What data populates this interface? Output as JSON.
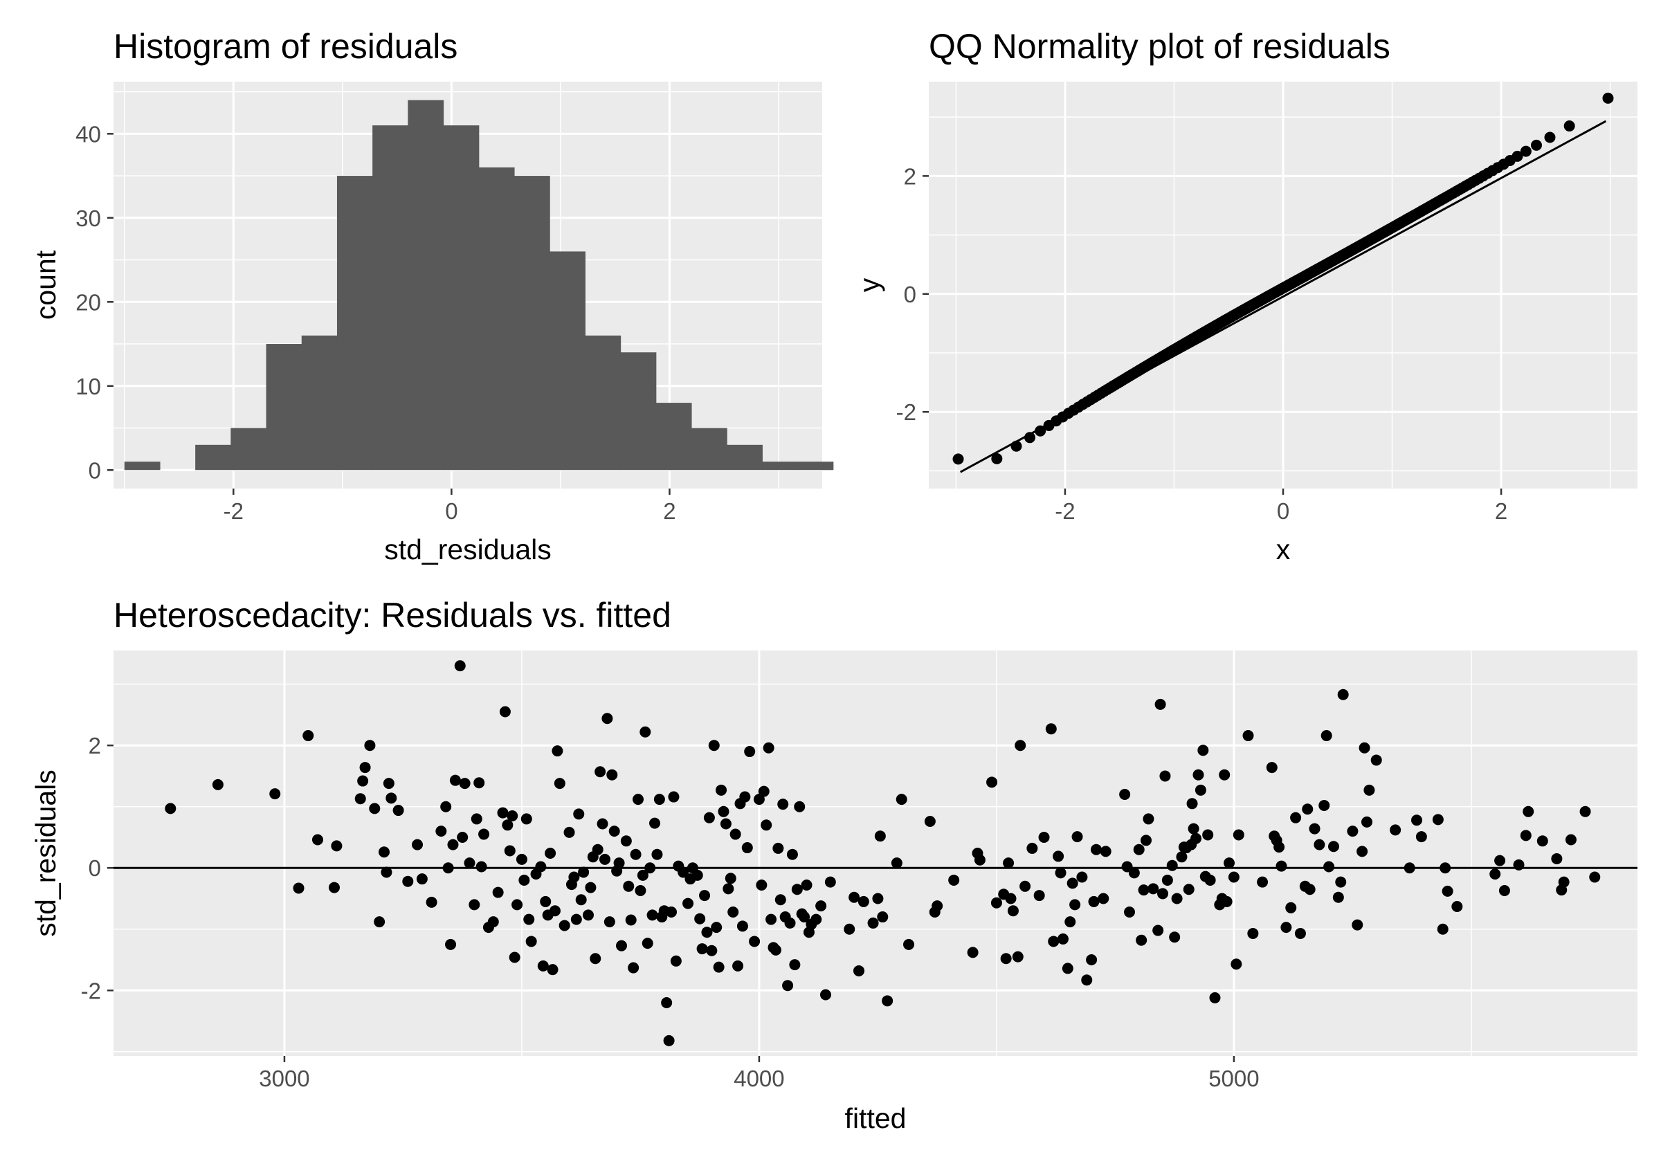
{
  "chart_data": [
    {
      "type": "bar",
      "title": "Histogram of residuals",
      "xlabel": "std_residuals",
      "ylabel": "count",
      "xlim": [
        -3.1,
        3.4
      ],
      "ylim": [
        -2.2,
        46.2
      ],
      "x_ticks": [
        -2,
        0,
        2
      ],
      "y_ticks": [
        0,
        10,
        20,
        30,
        40
      ],
      "bin_width": 0.325,
      "bin_start": -3.0,
      "counts": [
        1,
        0,
        3,
        5,
        15,
        16,
        35,
        41,
        44,
        41,
        36,
        35,
        26,
        16,
        14,
        8,
        5,
        3,
        1,
        1
      ],
      "grid": true,
      "bar_color": "#595959"
    },
    {
      "type": "scatter",
      "title": "QQ Normality plot of residuals",
      "xlabel": "x",
      "ylabel": "y",
      "xlim": [
        -3.25,
        3.25
      ],
      "ylim": [
        -3.3,
        3.6
      ],
      "x_ticks": [
        -2,
        0,
        2
      ],
      "y_ticks": [
        -2,
        0,
        2
      ],
      "reference_line": {
        "x": [
          -2.96,
          2.96
        ],
        "y": [
          -3.02,
          2.93
        ]
      },
      "sample_size": 347,
      "grid": true,
      "point_color": "#000000"
    },
    {
      "type": "scatter",
      "title": "Heteroscedacity: Residuals vs. fitted",
      "xlabel": "fitted",
      "ylabel": "std_residuals",
      "xlim": [
        2640,
        5850
      ],
      "ylim": [
        -3.07,
        3.55
      ],
      "x_ticks": [
        3000,
        4000,
        5000
      ],
      "y_ticks": [
        -2,
        0,
        2
      ],
      "hline": 0,
      "grid": true,
      "point_color": "#000000",
      "points": [
        [
          2760,
          0.97
        ],
        [
          2860,
          1.36
        ],
        [
          2980,
          1.21
        ],
        [
          3030,
          -0.33
        ],
        [
          3050,
          2.16
        ],
        [
          3070,
          0.46
        ],
        [
          3110,
          0.36
        ],
        [
          3105,
          -0.32
        ],
        [
          3160,
          1.13
        ],
        [
          3165,
          1.42
        ],
        [
          3170,
          1.64
        ],
        [
          3180,
          2.0
        ],
        [
          3190,
          0.97
        ],
        [
          3200,
          -0.88
        ],
        [
          3210,
          0.26
        ],
        [
          3215,
          -0.07
        ],
        [
          3220,
          1.38
        ],
        [
          3225,
          1.14
        ],
        [
          3240,
          0.94
        ],
        [
          3260,
          -0.22
        ],
        [
          3280,
          0.38
        ],
        [
          3290,
          -0.18
        ],
        [
          3310,
          -0.56
        ],
        [
          3330,
          0.6
        ],
        [
          3340,
          1.0
        ],
        [
          3345,
          0.0
        ],
        [
          3350,
          -1.25
        ],
        [
          3355,
          0.38
        ],
        [
          3360,
          1.43
        ],
        [
          3370,
          3.3
        ],
        [
          3375,
          0.5
        ],
        [
          3380,
          1.38
        ],
        [
          3390,
          0.08
        ],
        [
          3400,
          -0.6
        ],
        [
          3405,
          0.8
        ],
        [
          3410,
          1.39
        ],
        [
          3415,
          0.02
        ],
        [
          3420,
          0.55
        ],
        [
          3430,
          -0.97
        ],
        [
          3440,
          -0.88
        ],
        [
          3450,
          -0.4
        ],
        [
          3460,
          0.9
        ],
        [
          3465,
          2.55
        ],
        [
          3470,
          0.7
        ],
        [
          3475,
          0.28
        ],
        [
          3480,
          0.85
        ],
        [
          3485,
          -1.46
        ],
        [
          3490,
          -0.6
        ],
        [
          3500,
          0.14
        ],
        [
          3505,
          -0.2
        ],
        [
          3510,
          0.8
        ],
        [
          3515,
          -0.84
        ],
        [
          3520,
          -1.2
        ],
        [
          3530,
          -0.1
        ],
        [
          3540,
          0.02
        ],
        [
          3545,
          -1.6
        ],
        [
          3550,
          -0.55
        ],
        [
          3555,
          -0.77
        ],
        [
          3560,
          0.24
        ],
        [
          3565,
          -1.66
        ],
        [
          3570,
          -0.7
        ],
        [
          3575,
          1.91
        ],
        [
          3580,
          1.38
        ],
        [
          3590,
          -0.94
        ],
        [
          3600,
          0.58
        ],
        [
          3605,
          -0.27
        ],
        [
          3610,
          -0.15
        ],
        [
          3615,
          -0.84
        ],
        [
          3620,
          0.88
        ],
        [
          3625,
          -0.52
        ],
        [
          3630,
          -0.07
        ],
        [
          3640,
          -0.77
        ],
        [
          3645,
          -0.32
        ],
        [
          3650,
          0.18
        ],
        [
          3655,
          -1.48
        ],
        [
          3660,
          0.3
        ],
        [
          3665,
          1.57
        ],
        [
          3670,
          0.72
        ],
        [
          3675,
          0.14
        ],
        [
          3680,
          2.44
        ],
        [
          3685,
          -0.88
        ],
        [
          3690,
          1.52
        ],
        [
          3695,
          0.6
        ],
        [
          3700,
          -0.05
        ],
        [
          3705,
          0.08
        ],
        [
          3710,
          -1.27
        ],
        [
          3720,
          0.44
        ],
        [
          3725,
          -0.3
        ],
        [
          3730,
          -0.85
        ],
        [
          3735,
          -1.63
        ],
        [
          3740,
          0.22
        ],
        [
          3745,
          1.12
        ],
        [
          3750,
          -0.37
        ],
        [
          3755,
          -0.12
        ],
        [
          3760,
          2.22
        ],
        [
          3765,
          -1.23
        ],
        [
          3770,
          0.0
        ],
        [
          3775,
          -0.77
        ],
        [
          3780,
          0.73
        ],
        [
          3785,
          0.22
        ],
        [
          3790,
          1.12
        ],
        [
          3795,
          -0.8
        ],
        [
          3800,
          -0.7
        ],
        [
          3805,
          -2.2
        ],
        [
          3810,
          -2.82
        ],
        [
          3815,
          -0.72
        ],
        [
          3820,
          1.16
        ],
        [
          3825,
          -1.52
        ],
        [
          3830,
          0.03
        ],
        [
          3840,
          -0.07
        ],
        [
          3850,
          -0.58
        ],
        [
          3855,
          -0.18
        ],
        [
          3860,
          0.0
        ],
        [
          3870,
          -0.12
        ],
        [
          3875,
          -0.83
        ],
        [
          3880,
          -1.32
        ],
        [
          3885,
          -0.45
        ],
        [
          3890,
          -1.05
        ],
        [
          3895,
          0.82
        ],
        [
          3900,
          -1.35
        ],
        [
          3905,
          2.0
        ],
        [
          3910,
          -0.97
        ],
        [
          3915,
          -1.62
        ],
        [
          3920,
          1.27
        ],
        [
          3925,
          0.92
        ],
        [
          3930,
          0.72
        ],
        [
          3935,
          -0.34
        ],
        [
          3940,
          -0.17
        ],
        [
          3945,
          -0.72
        ],
        [
          3950,
          0.55
        ],
        [
          3955,
          -1.6
        ],
        [
          3960,
          1.05
        ],
        [
          3965,
          -0.95
        ],
        [
          3970,
          1.16
        ],
        [
          3975,
          0.33
        ],
        [
          3980,
          1.9
        ],
        [
          3990,
          -1.2
        ],
        [
          4000,
          1.12
        ],
        [
          4005,
          -0.28
        ],
        [
          4010,
          1.25
        ],
        [
          4015,
          0.7
        ],
        [
          4020,
          1.96
        ],
        [
          4025,
          -0.84
        ],
        [
          4030,
          -1.3
        ],
        [
          4035,
          -1.34
        ],
        [
          4040,
          0.32
        ],
        [
          4045,
          -0.52
        ],
        [
          4050,
          1.04
        ],
        [
          4055,
          -0.8
        ],
        [
          4060,
          -1.92
        ],
        [
          4065,
          -0.9
        ],
        [
          4070,
          0.22
        ],
        [
          4075,
          -1.58
        ],
        [
          4080,
          -0.35
        ],
        [
          4085,
          1.0
        ],
        [
          4090,
          -0.75
        ],
        [
          4095,
          -0.8
        ],
        [
          4100,
          -0.28
        ],
        [
          4105,
          -1.05
        ],
        [
          4110,
          -0.92
        ],
        [
          4120,
          -0.84
        ],
        [
          4130,
          -0.62
        ],
        [
          4140,
          -2.07
        ],
        [
          4150,
          -0.23
        ],
        [
          4190,
          -1.0
        ],
        [
          4200,
          -0.48
        ],
        [
          4210,
          -1.68
        ],
        [
          4220,
          -0.55
        ],
        [
          4240,
          -0.9
        ],
        [
          4250,
          -0.5
        ],
        [
          4255,
          0.52
        ],
        [
          4260,
          -0.8
        ],
        [
          4270,
          -2.17
        ],
        [
          4290,
          0.08
        ],
        [
          4300,
          1.12
        ],
        [
          4315,
          -1.25
        ],
        [
          4360,
          0.76
        ],
        [
          4370,
          -0.72
        ],
        [
          4375,
          -0.62
        ],
        [
          4410,
          -0.2
        ],
        [
          4450,
          -1.38
        ],
        [
          4460,
          0.24
        ],
        [
          4465,
          0.13
        ],
        [
          4490,
          1.4
        ],
        [
          4500,
          -0.57
        ],
        [
          4515,
          -0.43
        ],
        [
          4520,
          -1.48
        ],
        [
          4525,
          0.08
        ],
        [
          4530,
          -0.5
        ],
        [
          4535,
          -0.7
        ],
        [
          4545,
          -1.45
        ],
        [
          4550,
          2.0
        ],
        [
          4560,
          -0.3
        ],
        [
          4575,
          0.32
        ],
        [
          4590,
          -0.45
        ],
        [
          4600,
          0.5
        ],
        [
          4615,
          2.27
        ],
        [
          4620,
          -1.2
        ],
        [
          4630,
          0.19
        ],
        [
          4635,
          -0.08
        ],
        [
          4640,
          -1.16
        ],
        [
          4650,
          -1.64
        ],
        [
          4655,
          -0.88
        ],
        [
          4660,
          -0.25
        ],
        [
          4665,
          -0.6
        ],
        [
          4670,
          0.51
        ],
        [
          4680,
          -0.15
        ],
        [
          4690,
          -1.83
        ],
        [
          4700,
          -1.5
        ],
        [
          4705,
          -0.55
        ],
        [
          4710,
          0.3
        ],
        [
          4725,
          -0.5
        ],
        [
          4730,
          0.27
        ],
        [
          4770,
          1.2
        ],
        [
          4775,
          0.02
        ],
        [
          4780,
          -0.72
        ],
        [
          4790,
          -0.08
        ],
        [
          4800,
          0.3
        ],
        [
          4805,
          -1.18
        ],
        [
          4810,
          -0.36
        ],
        [
          4815,
          0.45
        ],
        [
          4820,
          0.8
        ],
        [
          4830,
          -0.34
        ],
        [
          4840,
          -1.02
        ],
        [
          4845,
          2.67
        ],
        [
          4850,
          -0.42
        ],
        [
          4855,
          1.5
        ],
        [
          4860,
          -0.2
        ],
        [
          4870,
          0.04
        ],
        [
          4875,
          -1.13
        ],
        [
          4880,
          -0.5
        ],
        [
          4890,
          0.18
        ],
        [
          4895,
          0.34
        ],
        [
          4900,
          0.33
        ],
        [
          4905,
          -0.35
        ],
        [
          4910,
          0.38
        ],
        [
          4912,
          1.05
        ],
        [
          4915,
          0.64
        ],
        [
          4920,
          0.48
        ],
        [
          4925,
          1.52
        ],
        [
          4930,
          1.27
        ],
        [
          4935,
          1.92
        ],
        [
          4940,
          -0.14
        ],
        [
          4945,
          0.54
        ],
        [
          4950,
          -0.2
        ],
        [
          4960,
          -2.12
        ],
        [
          4970,
          -0.6
        ],
        [
          4975,
          -0.5
        ],
        [
          4980,
          1.52
        ],
        [
          4985,
          -0.55
        ],
        [
          4990,
          0.08
        ],
        [
          5000,
          -0.15
        ],
        [
          5005,
          -1.57
        ],
        [
          5010,
          0.54
        ],
        [
          5030,
          2.16
        ],
        [
          5040,
          -1.07
        ],
        [
          5060,
          -0.23
        ],
        [
          5080,
          1.64
        ],
        [
          5085,
          0.52
        ],
        [
          5090,
          0.45
        ],
        [
          5095,
          0.34
        ],
        [
          5100,
          0.03
        ],
        [
          5110,
          -0.97
        ],
        [
          5120,
          -0.65
        ],
        [
          5130,
          0.82
        ],
        [
          5140,
          -1.07
        ],
        [
          5150,
          -0.3
        ],
        [
          5155,
          0.96
        ],
        [
          5160,
          -0.35
        ],
        [
          5170,
          0.64
        ],
        [
          5180,
          0.38
        ],
        [
          5190,
          1.02
        ],
        [
          5195,
          2.16
        ],
        [
          5200,
          0.02
        ],
        [
          5210,
          0.35
        ],
        [
          5220,
          -0.48
        ],
        [
          5225,
          -0.23
        ],
        [
          5230,
          2.83
        ],
        [
          5250,
          0.6
        ],
        [
          5260,
          -0.93
        ],
        [
          5270,
          0.27
        ],
        [
          5275,
          1.96
        ],
        [
          5280,
          0.75
        ],
        [
          5285,
          1.27
        ],
        [
          5300,
          1.76
        ],
        [
          5340,
          0.62
        ],
        [
          5370,
          0.0
        ],
        [
          5385,
          0.78
        ],
        [
          5395,
          0.51
        ],
        [
          5430,
          0.79
        ],
        [
          5440,
          -1.0
        ],
        [
          5445,
          0.0
        ],
        [
          5450,
          -0.38
        ],
        [
          5470,
          -0.63
        ],
        [
          5550,
          -0.1
        ],
        [
          5560,
          0.12
        ],
        [
          5570,
          -0.37
        ],
        [
          5600,
          0.05
        ],
        [
          5615,
          0.53
        ],
        [
          5620,
          0.92
        ],
        [
          5650,
          0.44
        ],
        [
          5680,
          0.15
        ],
        [
          5690,
          -0.36
        ],
        [
          5695,
          -0.23
        ],
        [
          5710,
          0.46
        ],
        [
          5740,
          0.92
        ],
        [
          5760,
          -0.15
        ]
      ]
    }
  ]
}
